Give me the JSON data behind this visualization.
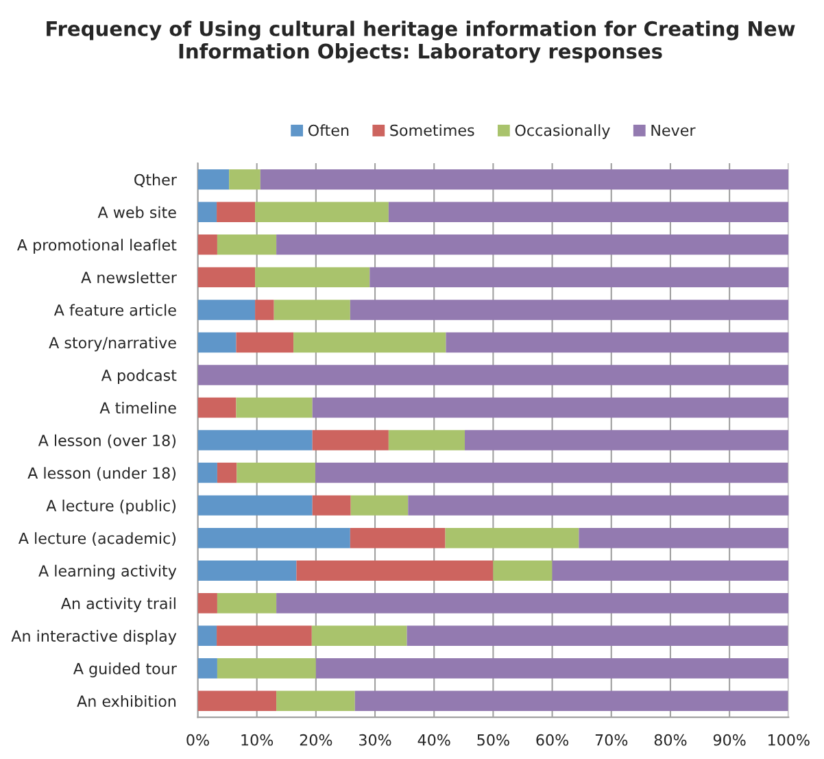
{
  "chart_data": {
    "type": "bar",
    "orientation": "horizontal",
    "stacked": true,
    "title": "Frequency of Using cultural heritage information for Creating New Information Objects: Laboratory responses",
    "categories": [
      "Qther",
      "A web site",
      "A promotional leaflet",
      "A newsletter",
      "A feature article",
      "A story/narrative",
      "A podcast",
      "A timeline",
      "A lesson (over 18)",
      "A lesson (under 18)",
      "A lecture (public)",
      "A lecture (academic)",
      "A learning activity",
      "An activity trail",
      "An interactive display",
      "A guided tour",
      "An exhibition"
    ],
    "series": [
      {
        "name": "Often",
        "color": "#5f96c9",
        "values": [
          5.3,
          3.2,
          0,
          0,
          9.7,
          6.5,
          0,
          0,
          19.4,
          3.3,
          19.4,
          25.8,
          16.7,
          0,
          3.2,
          3.3,
          0
        ]
      },
      {
        "name": "Sometimes",
        "color": "#cd645f",
        "values": [
          0,
          6.5,
          3.3,
          9.7,
          3.2,
          9.7,
          0,
          6.5,
          12.9,
          3.3,
          6.5,
          16.1,
          33.3,
          3.3,
          16.1,
          0,
          13.3
        ]
      },
      {
        "name": "Occasionally",
        "color": "#a9c36c",
        "values": [
          5.3,
          22.6,
          10.0,
          19.4,
          12.9,
          25.8,
          0,
          12.9,
          12.9,
          13.3,
          9.7,
          22.6,
          10.0,
          10.0,
          16.1,
          16.7,
          13.3
        ]
      },
      {
        "name": "Never",
        "color": "#937ab0",
        "values": [
          89.4,
          67.7,
          86.7,
          71.0,
          74.2,
          58.1,
          100,
          80.6,
          54.8,
          80.0,
          64.5,
          35.5,
          40.0,
          86.7,
          64.5,
          80.0,
          73.3
        ]
      }
    ],
    "xlim": [
      0,
      100
    ],
    "xticks": [
      {
        "value": 0,
        "label": "0%"
      },
      {
        "value": 10,
        "label": "10%"
      },
      {
        "value": 20,
        "label": "20%"
      },
      {
        "value": 30,
        "label": "30%"
      },
      {
        "value": 40,
        "label": "40%"
      },
      {
        "value": 50,
        "label": "50%"
      },
      {
        "value": 60,
        "label": "60%"
      },
      {
        "value": 70,
        "label": "70%"
      },
      {
        "value": 80,
        "label": "80%"
      },
      {
        "value": 90,
        "label": "90%"
      },
      {
        "value": 100,
        "label": "100%"
      }
    ],
    "grid": "x",
    "legend": "top"
  }
}
